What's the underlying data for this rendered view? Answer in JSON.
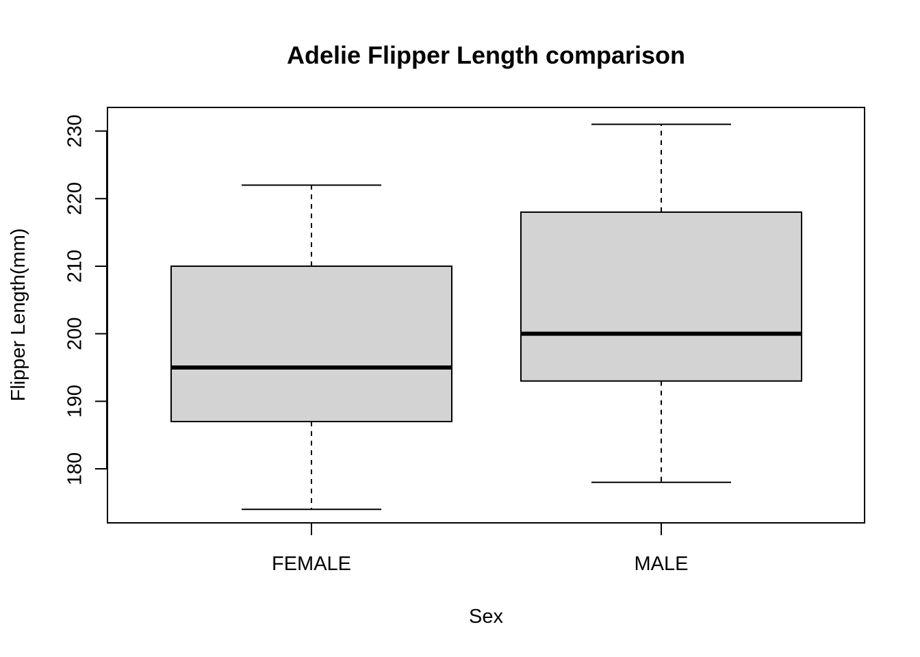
{
  "chart_data": {
    "type": "boxplot",
    "title": "Adelie Flipper Length comparison",
    "xlabel": "Sex",
    "ylabel": "Flipper Length(mm)",
    "categories": [
      "FEMALE",
      "MALE"
    ],
    "boxes": [
      {
        "category": "FEMALE",
        "whisker_low": 174,
        "q1": 187,
        "median": 195,
        "q3": 210,
        "whisker_high": 222
      },
      {
        "category": "MALE",
        "whisker_low": 178,
        "q1": 193,
        "median": 200,
        "q3": 218,
        "whisker_high": 231
      }
    ],
    "ylim": [
      172,
      233.5
    ],
    "yticks": [
      180,
      190,
      200,
      210,
      220,
      230
    ],
    "box_fill": "#d3d3d3",
    "line_color": "#000000"
  }
}
